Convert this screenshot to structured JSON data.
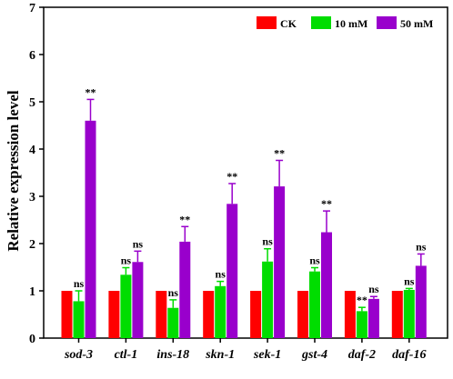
{
  "chart_data": {
    "type": "bar",
    "title": "",
    "xlabel": "",
    "ylabel": "Relative expression level",
    "ylim": [
      0,
      7
    ],
    "yticks": [
      0,
      1,
      2,
      3,
      4,
      5,
      6,
      7
    ],
    "grid": false,
    "legend_position": "top-right",
    "categories": [
      "sod-3",
      "ctl-1",
      "ins-18",
      "skn-1",
      "sek-1",
      "gst-4",
      "daf-2",
      "daf-16"
    ],
    "series": [
      {
        "name": "CK",
        "color": "#ff0000",
        "values": [
          1.0,
          1.0,
          1.0,
          1.0,
          1.0,
          1.0,
          1.0,
          1.0
        ],
        "errors": [
          0,
          0,
          0,
          0,
          0,
          0,
          0,
          0
        ],
        "labels": [
          "",
          "",
          "",
          "",
          "",
          "",
          "",
          ""
        ]
      },
      {
        "name": "10 mM",
        "color": "#00dd00",
        "values": [
          0.78,
          1.34,
          0.64,
          1.1,
          1.62,
          1.41,
          0.57,
          1.02
        ],
        "errors": [
          0.22,
          0.15,
          0.17,
          0.1,
          0.27,
          0.08,
          0.08,
          0.03
        ],
        "labels": [
          "ns",
          "ns",
          "ns",
          "ns",
          "ns",
          "ns",
          "**",
          "ns"
        ]
      },
      {
        "name": "50 mM",
        "color": "#9900cc",
        "values": [
          4.6,
          1.61,
          2.04,
          2.84,
          3.21,
          2.24,
          0.83,
          1.53
        ],
        "errors": [
          0.45,
          0.23,
          0.32,
          0.43,
          0.55,
          0.45,
          0.05,
          0.25
        ],
        "labels": [
          "**",
          "ns",
          "**",
          "**",
          "**",
          "**",
          "ns",
          "ns"
        ]
      }
    ]
  }
}
